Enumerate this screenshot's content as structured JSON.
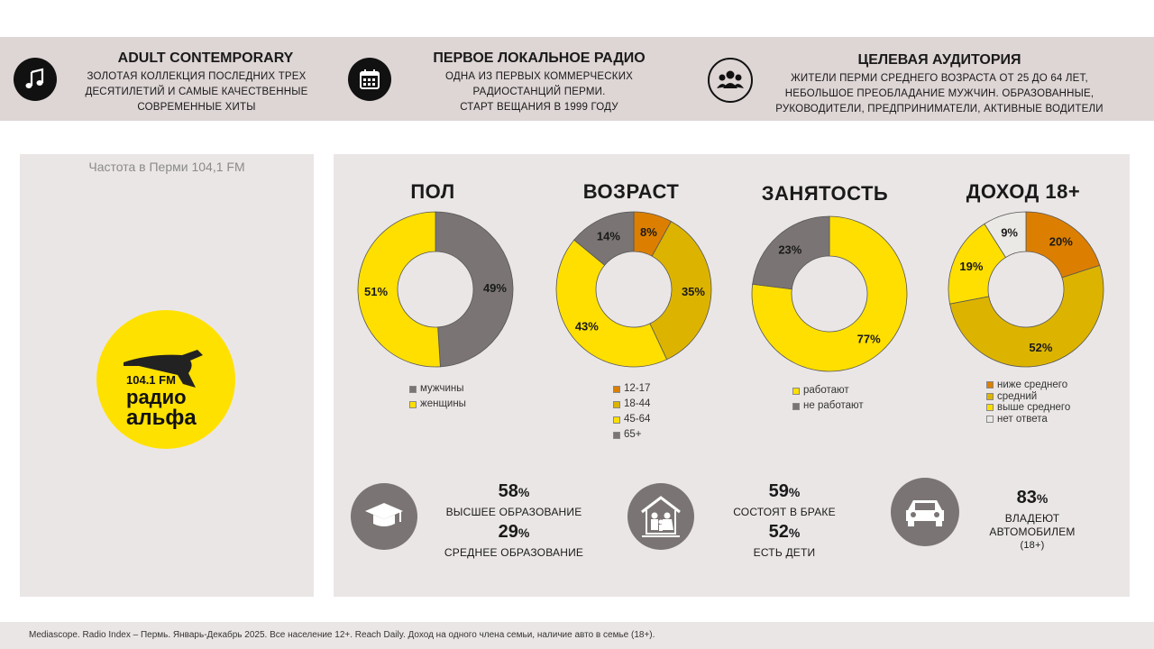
{
  "header": {
    "block1": {
      "title": "ADULT CONTEMPORARY",
      "lines": [
        "ЗОЛОТАЯ КОЛЛЕКЦИЯ ПОСЛЕДНИХ ТРЕХ",
        "ДЕСЯТИЛЕТИЙ И САМЫЕ КАЧЕСТВЕННЫЕ",
        "СОВРЕМЕННЫЕ ХИТЫ"
      ],
      "icon": "music-note-icon"
    },
    "block2": {
      "title": "ПЕРВОЕ ЛОКАЛЬНОЕ РАДИО",
      "lines": [
        "ОДНА ИЗ ПЕРВЫХ КОММЕРЧЕСКИХ",
        "РАДИОСТАНЦИЙ ПЕРМИ.",
        "СТАРТ ВЕЩАНИЯ В 1999 ГОДУ"
      ],
      "icon": "calendar-icon"
    },
    "block3": {
      "title": "ЦЕЛЕВАЯ АУДИТОРИЯ",
      "lines": [
        "ЖИТЕЛИ ПЕРМИ СРЕДНЕГО ВОЗРАСТА  ОТ 25 ДО 64 ЛЕТ,",
        "НЕБОЛЬШОЕ ПРЕОБЛАДАНИЕ МУЖЧИН. ОБРАЗОВАННЫЕ,",
        "РУКОВОДИТЕЛИ,  ПРЕДПРИНИМАТЕЛИ, АКТИВНЫЕ ВОДИТЕЛИ"
      ],
      "icon": "audience-icon"
    }
  },
  "left": {
    "frequency": "Частота в Перми 104,1 FM",
    "logo": {
      "freq": "104.1 FM",
      "word1": "радио",
      "word2": "альфа"
    }
  },
  "chart_data": [
    {
      "type": "pie",
      "title": "ПОЛ",
      "categories": [
        "мужчины",
        "женщины"
      ],
      "values": [
        49,
        51
      ],
      "labels": [
        "49%",
        "51%"
      ],
      "colors": [
        "#7a7574",
        "#ffdf00"
      ]
    },
    {
      "type": "pie",
      "title": "ВОЗРАСТ",
      "categories": [
        "12-17",
        "18-44",
        "45-64",
        "65+"
      ],
      "values": [
        8,
        35,
        43,
        14
      ],
      "labels": [
        "8%",
        "35%",
        "43%",
        "14%"
      ],
      "colors": [
        "#dc7f00",
        "#dcb400",
        "#ffdf00",
        "#7a7574"
      ]
    },
    {
      "type": "pie",
      "title": "ЗАНЯТОСТЬ",
      "categories": [
        "работают",
        "не работают"
      ],
      "values": [
        77,
        23
      ],
      "labels": [
        "77%",
        "23%"
      ],
      "colors": [
        "#ffdf00",
        "#7a7574"
      ]
    },
    {
      "type": "pie",
      "title": "ДОХОД 18+",
      "categories": [
        "ниже среднего",
        "средний",
        "выше среднего",
        "нет ответа"
      ],
      "values": [
        20,
        52,
        19,
        9
      ],
      "labels": [
        "20%",
        "52%",
        "19%",
        "9%"
      ],
      "colors": [
        "#dc7f00",
        "#dcb400",
        "#ffdf00",
        "#ebe9e6"
      ]
    }
  ],
  "stats": {
    "education": {
      "icon": "graduation-cap-icon",
      "v1": "58",
      "l1": "ВЫСШЕЕ ОБРАЗОВАНИЕ",
      "v2": "29",
      "l2": "СРЕДНЕЕ ОБРАЗОВАНИЕ"
    },
    "family": {
      "icon": "family-house-icon",
      "v1": "59",
      "l1": "СОСТОЯТ В БРАКЕ",
      "v2": "52",
      "l2": "ЕСТЬ ДЕТИ"
    },
    "car": {
      "icon": "car-icon",
      "v1": "83",
      "l1": "ВЛАДЕЮТ",
      "l1b": "АВТОМОБИЛЕМ",
      "l1c": "(18+)"
    },
    "percent_sign": "%"
  },
  "footer": "Mediascope. Radio Index – Пермь. Январь-Декабрь 2025. Все население 12+. Reach Daily. Доход на одного члена семьи, наличие авто в семье (18+)."
}
